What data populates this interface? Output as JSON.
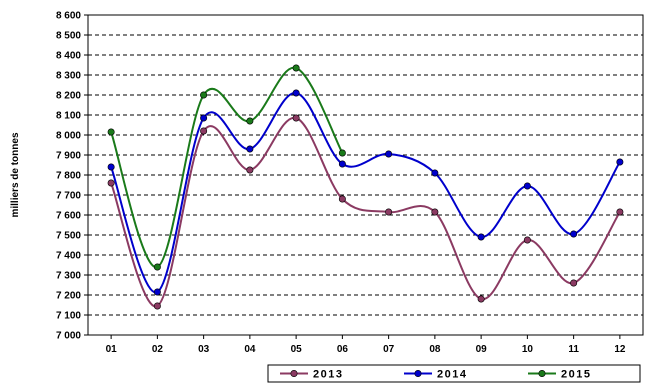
{
  "chart_data": {
    "type": "line",
    "smooth": true,
    "categories": [
      "01",
      "02",
      "03",
      "04",
      "05",
      "06",
      "07",
      "08",
      "09",
      "10",
      "11",
      "12"
    ],
    "ylabel": "milliers de tonnes",
    "xlabel": "",
    "ylim": [
      7000,
      8600
    ],
    "ytick_step": 100,
    "ytick_labels": [
      "7 000",
      "7 100",
      "7 200",
      "7 300",
      "7 400",
      "7 500",
      "7 600",
      "7 700",
      "7 800",
      "7 900",
      "8 000",
      "8 100",
      "8 200",
      "8 300",
      "8 400",
      "8 500",
      "8 600"
    ],
    "grid": true,
    "legend_position": "bottom-right",
    "series": [
      {
        "name": "2013",
        "color": "#8B3A62",
        "values": [
          7760,
          7145,
          8020,
          7825,
          8085,
          7680,
          7615,
          7615,
          7180,
          7475,
          7260,
          7615
        ]
      },
      {
        "name": "2014",
        "color": "#0000CC",
        "values": [
          7840,
          7215,
          8085,
          7930,
          8210,
          7855,
          7905,
          7810,
          7490,
          7745,
          7505,
          7865
        ]
      },
      {
        "name": "2015",
        "color": "#1A7A1A",
        "values": [
          8015,
          7340,
          8200,
          8070,
          8335,
          7910,
          null,
          null,
          null,
          null,
          null,
          null
        ]
      }
    ]
  }
}
